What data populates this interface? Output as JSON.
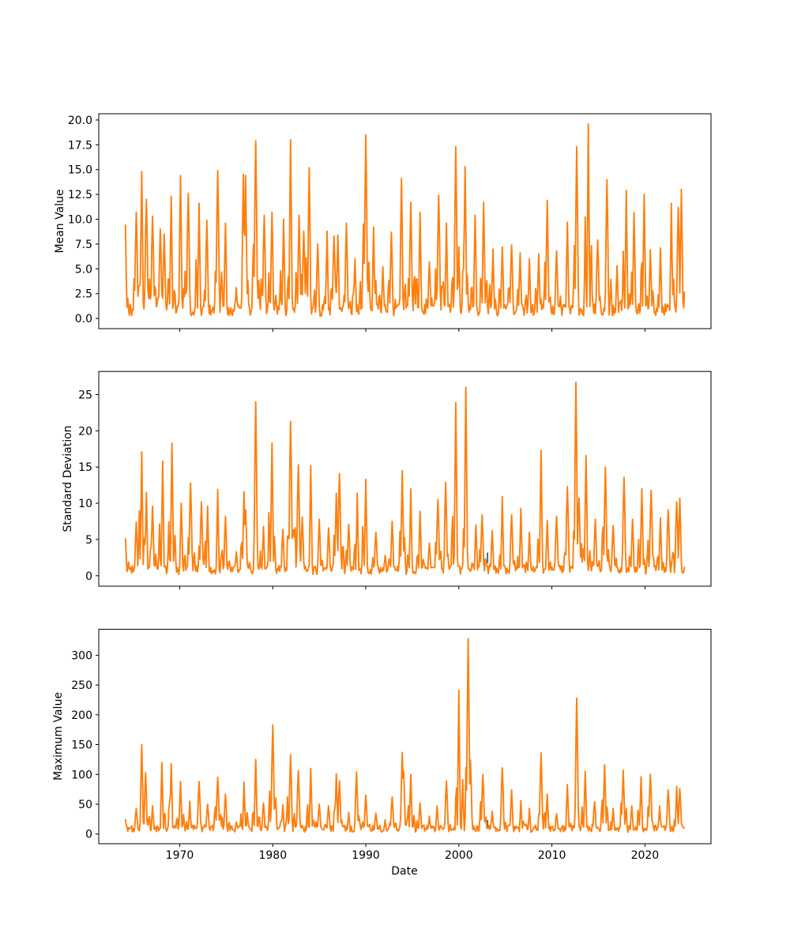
{
  "figure": {
    "background_color": "#ffffff"
  },
  "x_axis": {
    "label": "Date",
    "tick_years": [
      1970,
      1980,
      1990,
      2000,
      2010,
      2020
    ],
    "tick_labels": [
      "1970",
      "1980",
      "1990",
      "2000",
      "2010",
      "2020"
    ],
    "xlim": [
      1961.3,
      2027.1
    ],
    "data_start": 1964.167,
    "data_end": 2024.333
  },
  "hidden_series": {
    "color": "#1f77b4",
    "segments": [
      {
        "plot_index": 1,
        "x": 2003.08,
        "values": [
          1.7,
          3.2
        ]
      },
      {
        "plot_index": 2,
        "x": 2003.08,
        "values": [
          9.0,
          23.5
        ]
      }
    ]
  },
  "chart_data": [
    {
      "type": "line",
      "ylabel": "Mean Value",
      "line_color": "#ff7f0e",
      "yticks": [
        0,
        2.5,
        5,
        7.5,
        10,
        12.5,
        15,
        17.5,
        20
      ],
      "ytick_labels": [
        "0.0",
        "2.5",
        "5.0",
        "7.5",
        "10.0",
        "12.5",
        "15.0",
        "17.5",
        "20.0"
      ],
      "ylim": [
        -1.03,
        20.63
      ],
      "trough_range": [
        0.25,
        1.5
      ],
      "peaks": [
        [
          1964.2,
          9.4
        ],
        [
          1965.3,
          10.7
        ],
        [
          1965.95,
          14.8
        ],
        [
          1966.4,
          12.0
        ],
        [
          1967.1,
          10.3
        ],
        [
          1967.9,
          9.0
        ],
        [
          1968.3,
          8.5
        ],
        [
          1969.1,
          12.3
        ],
        [
          1970.1,
          14.4
        ],
        [
          1970.9,
          12.6
        ],
        [
          1972.1,
          11.6
        ],
        [
          1972.95,
          9.9
        ],
        [
          1974.1,
          14.9
        ],
        [
          1974.95,
          9.6
        ],
        [
          1976.1,
          3.1
        ],
        [
          1976.85,
          14.5
        ],
        [
          1977.1,
          14.4
        ],
        [
          1978.15,
          17.9
        ],
        [
          1979.05,
          10.4
        ],
        [
          1979.95,
          10.7
        ],
        [
          1981.2,
          10.0
        ],
        [
          1981.9,
          18.0
        ],
        [
          1982.8,
          10.4
        ],
        [
          1983.3,
          8.8
        ],
        [
          1983.95,
          15.2
        ],
        [
          1984.85,
          7.5
        ],
        [
          1985.85,
          8.8
        ],
        [
          1986.6,
          8.3
        ],
        [
          1987.0,
          8.4
        ],
        [
          1987.9,
          9.6
        ],
        [
          1988.8,
          6.0
        ],
        [
          1989.75,
          9.5
        ],
        [
          1989.97,
          18.5
        ],
        [
          1990.8,
          9.2
        ],
        [
          1991.8,
          5.2
        ],
        [
          1992.75,
          8.7
        ],
        [
          1993.85,
          14.1
        ],
        [
          1994.85,
          11.7
        ],
        [
          1995.85,
          10.7
        ],
        [
          1996.8,
          5.7
        ],
        [
          1997.85,
          12.4
        ],
        [
          1998.7,
          9.6
        ],
        [
          1999.7,
          17.3
        ],
        [
          2000.7,
          15.3
        ],
        [
          2001.75,
          10.4
        ],
        [
          2002.7,
          11.7
        ],
        [
          2003.7,
          7.0
        ],
        [
          2004.7,
          7.2
        ],
        [
          2005.7,
          7.4
        ],
        [
          2006.6,
          6.6
        ],
        [
          2007.6,
          6.0
        ],
        [
          2008.6,
          6.5
        ],
        [
          2009.5,
          11.9
        ],
        [
          2010.5,
          6.8
        ],
        [
          2011.7,
          9.7
        ],
        [
          2012.65,
          17.3
        ],
        [
          2013.95,
          19.6
        ],
        [
          2014.9,
          7.9
        ],
        [
          2015.9,
          14.0
        ],
        [
          2017.0,
          5.3
        ],
        [
          2018.0,
          12.9
        ],
        [
          2018.8,
          10.7
        ],
        [
          2019.9,
          12.5
        ],
        [
          2020.6,
          6.9
        ],
        [
          2021.7,
          7.1
        ],
        [
          2022.8,
          11.6
        ],
        [
          2023.6,
          11.2
        ],
        [
          2023.95,
          13.0
        ]
      ]
    },
    {
      "type": "line",
      "ylabel": "Standard Deviation",
      "line_color": "#ff7f0e",
      "yticks": [
        0,
        5,
        10,
        15,
        20,
        25
      ],
      "ytick_labels": [
        "0",
        "5",
        "10",
        "15",
        "20",
        "25"
      ],
      "ylim": [
        -1.44,
        28.2
      ],
      "trough_range": [
        0.15,
        1.4
      ],
      "peaks": [
        [
          1964.2,
          5.1
        ],
        [
          1965.3,
          7.4
        ],
        [
          1965.95,
          17.1
        ],
        [
          1966.4,
          11.5
        ],
        [
          1967.1,
          9.6
        ],
        [
          1968.2,
          15.8
        ],
        [
          1969.2,
          18.3
        ],
        [
          1970.2,
          10.0
        ],
        [
          1971.2,
          12.8
        ],
        [
          1972.3,
          10.2
        ],
        [
          1973.0,
          9.6
        ],
        [
          1974.1,
          11.9
        ],
        [
          1974.9,
          8.2
        ],
        [
          1976.1,
          3.3
        ],
        [
          1976.9,
          11.6
        ],
        [
          1977.1,
          9.1
        ],
        [
          1978.2,
          24.0
        ],
        [
          1979.0,
          6.8
        ],
        [
          1979.95,
          18.3
        ],
        [
          1981.1,
          6.4
        ],
        [
          1981.9,
          21.3
        ],
        [
          1982.75,
          15.3
        ],
        [
          1983.2,
          8.1
        ],
        [
          1984.1,
          15.2
        ],
        [
          1985.0,
          7.8
        ],
        [
          1986.0,
          6.6
        ],
        [
          1986.85,
          11.4
        ],
        [
          1987.2,
          14.1
        ],
        [
          1988.2,
          7.1
        ],
        [
          1989.05,
          11.4
        ],
        [
          1990.0,
          13.3
        ],
        [
          1991.1,
          6.0
        ],
        [
          1992.1,
          2.8
        ],
        [
          1992.8,
          7.5
        ],
        [
          1993.9,
          14.5
        ],
        [
          1994.85,
          12.0
        ],
        [
          1995.85,
          8.9
        ],
        [
          1996.8,
          4.5
        ],
        [
          1997.75,
          10.5
        ],
        [
          1998.55,
          12.9
        ],
        [
          1999.7,
          23.9
        ],
        [
          2000.75,
          26.0
        ],
        [
          2001.8,
          7.0
        ],
        [
          2002.5,
          8.4
        ],
        [
          2003.6,
          6.2
        ],
        [
          2004.65,
          10.9
        ],
        [
          2005.65,
          8.4
        ],
        [
          2006.7,
          9.3
        ],
        [
          2007.6,
          6.0
        ],
        [
          2008.8,
          17.3
        ],
        [
          2009.5,
          7.6
        ],
        [
          2010.5,
          8.2
        ],
        [
          2011.7,
          12.3
        ],
        [
          2012.6,
          26.7
        ],
        [
          2012.9,
          10.7
        ],
        [
          2013.65,
          16.6
        ],
        [
          2014.7,
          7.8
        ],
        [
          2015.75,
          15.0
        ],
        [
          2016.6,
          6.9
        ],
        [
          2017.75,
          13.6
        ],
        [
          2018.65,
          7.8
        ],
        [
          2019.65,
          12.0
        ],
        [
          2020.7,
          11.8
        ],
        [
          2021.7,
          8.0
        ],
        [
          2022.5,
          9.1
        ],
        [
          2023.45,
          10.2
        ],
        [
          2023.75,
          10.7
        ]
      ]
    },
    {
      "type": "line",
      "ylabel": "Maximum Value",
      "line_color": "#ff7f0e",
      "yticks": [
        0,
        50,
        100,
        150,
        200,
        250,
        300
      ],
      "ytick_labels": [
        "0",
        "50",
        "100",
        "150",
        "200",
        "250",
        "300"
      ],
      "ylim": [
        -16.3,
        343.6
      ],
      "trough_range": [
        3,
        15
      ],
      "peaks": [
        [
          1964.2,
          24
        ],
        [
          1965.3,
          43
        ],
        [
          1965.95,
          150
        ],
        [
          1966.35,
          103
        ],
        [
          1967.1,
          47
        ],
        [
          1968.1,
          120
        ],
        [
          1969.1,
          118
        ],
        [
          1970.1,
          88
        ],
        [
          1971.1,
          55
        ],
        [
          1972.1,
          88
        ],
        [
          1973.0,
          50
        ],
        [
          1974.1,
          95
        ],
        [
          1974.9,
          67
        ],
        [
          1976.1,
          20
        ],
        [
          1976.9,
          87
        ],
        [
          1978.2,
          125
        ],
        [
          1979.0,
          52
        ],
        [
          1980.0,
          183
        ],
        [
          1981.1,
          49
        ],
        [
          1981.9,
          133
        ],
        [
          1982.75,
          106
        ],
        [
          1984.05,
          110
        ],
        [
          1985.0,
          50
        ],
        [
          1986.0,
          47
        ],
        [
          1986.85,
          101
        ],
        [
          1987.2,
          89
        ],
        [
          1988.2,
          36
        ],
        [
          1989.0,
          104
        ],
        [
          1990.0,
          65
        ],
        [
          1991.1,
          35
        ],
        [
          1992.1,
          24
        ],
        [
          1992.8,
          62
        ],
        [
          1993.9,
          137
        ],
        [
          1994.1,
          105
        ],
        [
          1994.8,
          100
        ],
        [
          1995.85,
          52
        ],
        [
          1996.8,
          30
        ],
        [
          1997.7,
          47
        ],
        [
          1998.7,
          89
        ],
        [
          1999.97,
          241
        ],
        [
          2001.0,
          328
        ],
        [
          2001.25,
          124
        ],
        [
          2002.55,
          100
        ],
        [
          2003.6,
          38
        ],
        [
          2004.7,
          111
        ],
        [
          2005.7,
          74
        ],
        [
          2006.7,
          56
        ],
        [
          2007.6,
          43
        ],
        [
          2008.8,
          136
        ],
        [
          2009.5,
          67
        ],
        [
          2010.5,
          34
        ],
        [
          2011.7,
          83
        ],
        [
          2012.63,
          228
        ],
        [
          2013.6,
          105
        ],
        [
          2014.6,
          54
        ],
        [
          2015.7,
          116
        ],
        [
          2016.6,
          43
        ],
        [
          2017.7,
          107
        ],
        [
          2018.6,
          47
        ],
        [
          2019.6,
          96
        ],
        [
          2020.6,
          100
        ],
        [
          2021.6,
          47
        ],
        [
          2022.5,
          74
        ],
        [
          2023.4,
          80
        ],
        [
          2023.75,
          76
        ]
      ]
    }
  ]
}
